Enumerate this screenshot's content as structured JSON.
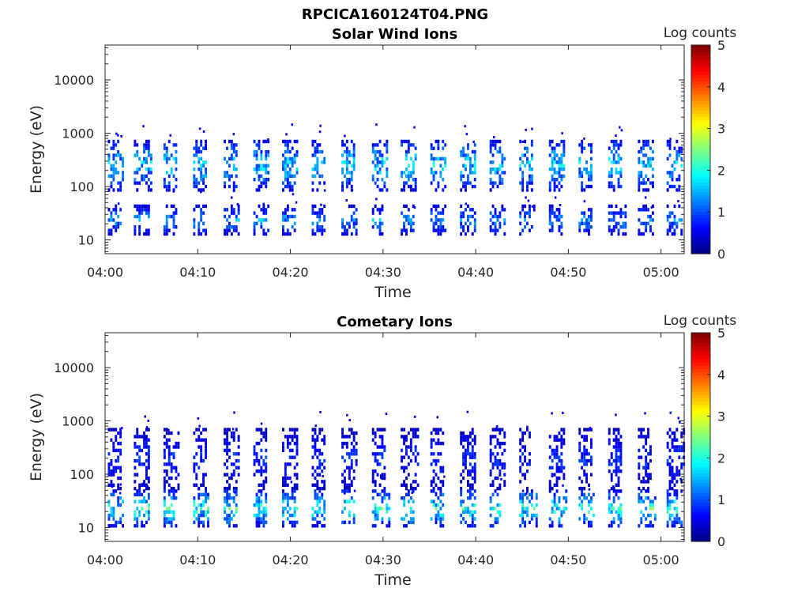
{
  "figure_title": "RPCICA160124T04.PNG",
  "chart_data": [
    {
      "type": "heatmap",
      "title": "Solar Wind Ions",
      "xlabel": "Time",
      "ylabel": "Energy (eV)",
      "y_scale": "log",
      "ylim": [
        5.5,
        45000
      ],
      "xlim_minutes": [
        0,
        62.5
      ],
      "x_tick_labels": [
        "04:00",
        "04:10",
        "04:20",
        "04:30",
        "04:40",
        "04:50",
        "05:00"
      ],
      "x_tick_minutes": [
        0,
        10,
        20,
        30,
        40,
        50,
        60
      ],
      "y_tick_labels": [
        "10",
        "100",
        "1000",
        "10000"
      ],
      "y_tick_values": [
        10,
        100,
        1000,
        10000
      ],
      "colorbar": {
        "label": "Log counts",
        "range": [
          0,
          5
        ],
        "tick_labels": [
          "0",
          "1",
          "2",
          "3",
          "4",
          "5"
        ],
        "colormap": "jet"
      },
      "bursts_minutes": [
        0.5,
        3.3,
        6.5,
        9.7,
        13.0,
        16.2,
        19.3,
        22.5,
        25.7,
        29.0,
        32.1,
        35.3,
        38.5,
        41.7,
        44.9,
        48.1,
        51.3,
        54.5,
        57.7,
        60.8
      ],
      "bands": [
        {
          "energy_low_eV": 80,
          "energy_high_eV": 700,
          "peak_log_counts": 2.0
        },
        {
          "energy_low_eV": 12,
          "energy_high_eV": 40,
          "peak_log_counts": 1.6
        }
      ]
    },
    {
      "type": "heatmap",
      "title": "Cometary Ions",
      "xlabel": "Time",
      "ylabel": "Energy (eV)",
      "y_scale": "log",
      "ylim": [
        5.5,
        45000
      ],
      "xlim_minutes": [
        0,
        62.5
      ],
      "x_tick_labels": [
        "04:00",
        "04:10",
        "04:20",
        "04:30",
        "04:40",
        "04:50",
        "05:00"
      ],
      "x_tick_minutes": [
        0,
        10,
        20,
        30,
        40,
        50,
        60
      ],
      "y_tick_labels": [
        "10",
        "100",
        "1000",
        "10000"
      ],
      "y_tick_values": [
        10,
        100,
        1000,
        10000
      ],
      "colorbar": {
        "label": "Log counts",
        "range": [
          0,
          5
        ],
        "tick_labels": [
          "0",
          "1",
          "2",
          "3",
          "4",
          "5"
        ],
        "colormap": "jet"
      },
      "bursts_minutes": [
        0.5,
        3.3,
        6.5,
        9.7,
        13.0,
        16.2,
        19.3,
        22.5,
        25.7,
        29.0,
        32.1,
        35.3,
        38.5,
        41.7,
        44.9,
        48.1,
        51.3,
        54.5,
        57.7,
        60.8
      ],
      "bands": [
        {
          "energy_low_eV": 50,
          "energy_high_eV": 700,
          "peak_log_counts": 1.0
        },
        {
          "energy_low_eV": 10,
          "energy_high_eV": 45,
          "peak_log_counts": 2.4
        }
      ]
    }
  ]
}
